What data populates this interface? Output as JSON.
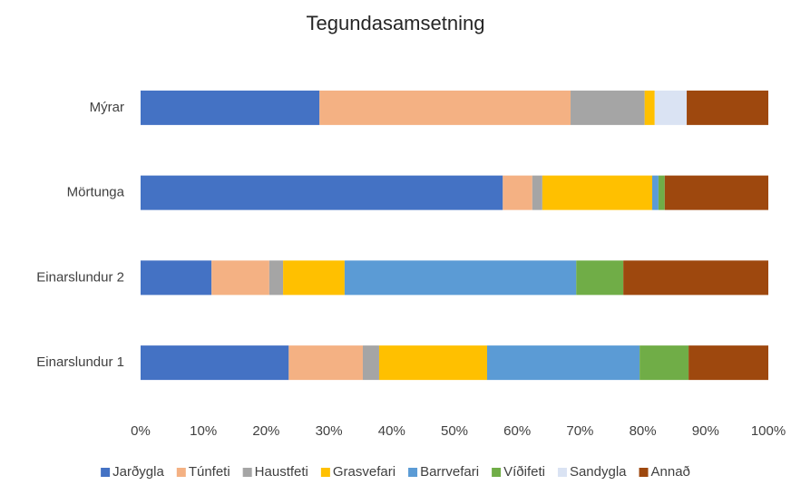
{
  "chart_data": {
    "type": "stacked-bar-horizontal",
    "title": "Tegundasamsetning",
    "categories": [
      "Mýrar",
      "Mörtunga",
      "Einarslundur 2",
      "Einarslundur 1"
    ],
    "series": [
      {
        "name": "Jarðygla",
        "color": "#4472c4",
        "values": [
          28.5,
          57.7,
          11.3,
          23.6
        ]
      },
      {
        "name": "Túnfeti",
        "color": "#f4b183",
        "values": [
          40,
          4.7,
          9.2,
          11.8
        ]
      },
      {
        "name": "Haustfeti",
        "color": "#a5a5a5",
        "values": [
          11.8,
          1.6,
          2.2,
          2.6
        ]
      },
      {
        "name": "Grasvefari",
        "color": "#ffc000",
        "values": [
          1.6,
          17.5,
          9.8,
          17.2
        ]
      },
      {
        "name": "Barrvefari",
        "color": "#5b9bd5",
        "values": [
          0,
          1,
          36.9,
          24.3
        ]
      },
      {
        "name": "Víðifeti",
        "color": "#70ad47",
        "values": [
          0,
          1,
          7.5,
          7.8
        ]
      },
      {
        "name": "Sandygla",
        "color": "#dae3f3",
        "values": [
          5.1,
          0,
          0,
          0
        ]
      },
      {
        "name": "Annað",
        "color": "#9e480e",
        "values": [
          13,
          16.5,
          23.1,
          12.7
        ]
      }
    ],
    "xlim": [
      0,
      100
    ],
    "xticks": [
      {
        "value": 0,
        "label": "0%"
      },
      {
        "value": 10,
        "label": "10%"
      },
      {
        "value": 20,
        "label": "20%"
      },
      {
        "value": 30,
        "label": "30%"
      },
      {
        "value": 40,
        "label": "40%"
      },
      {
        "value": 50,
        "label": "50%"
      },
      {
        "value": 60,
        "label": "60%"
      },
      {
        "value": 70,
        "label": "70%"
      },
      {
        "value": 80,
        "label": "80%"
      },
      {
        "value": 90,
        "label": "90%"
      },
      {
        "value": 100,
        "label": "100%"
      }
    ],
    "grid": false,
    "legend": "bottom"
  }
}
